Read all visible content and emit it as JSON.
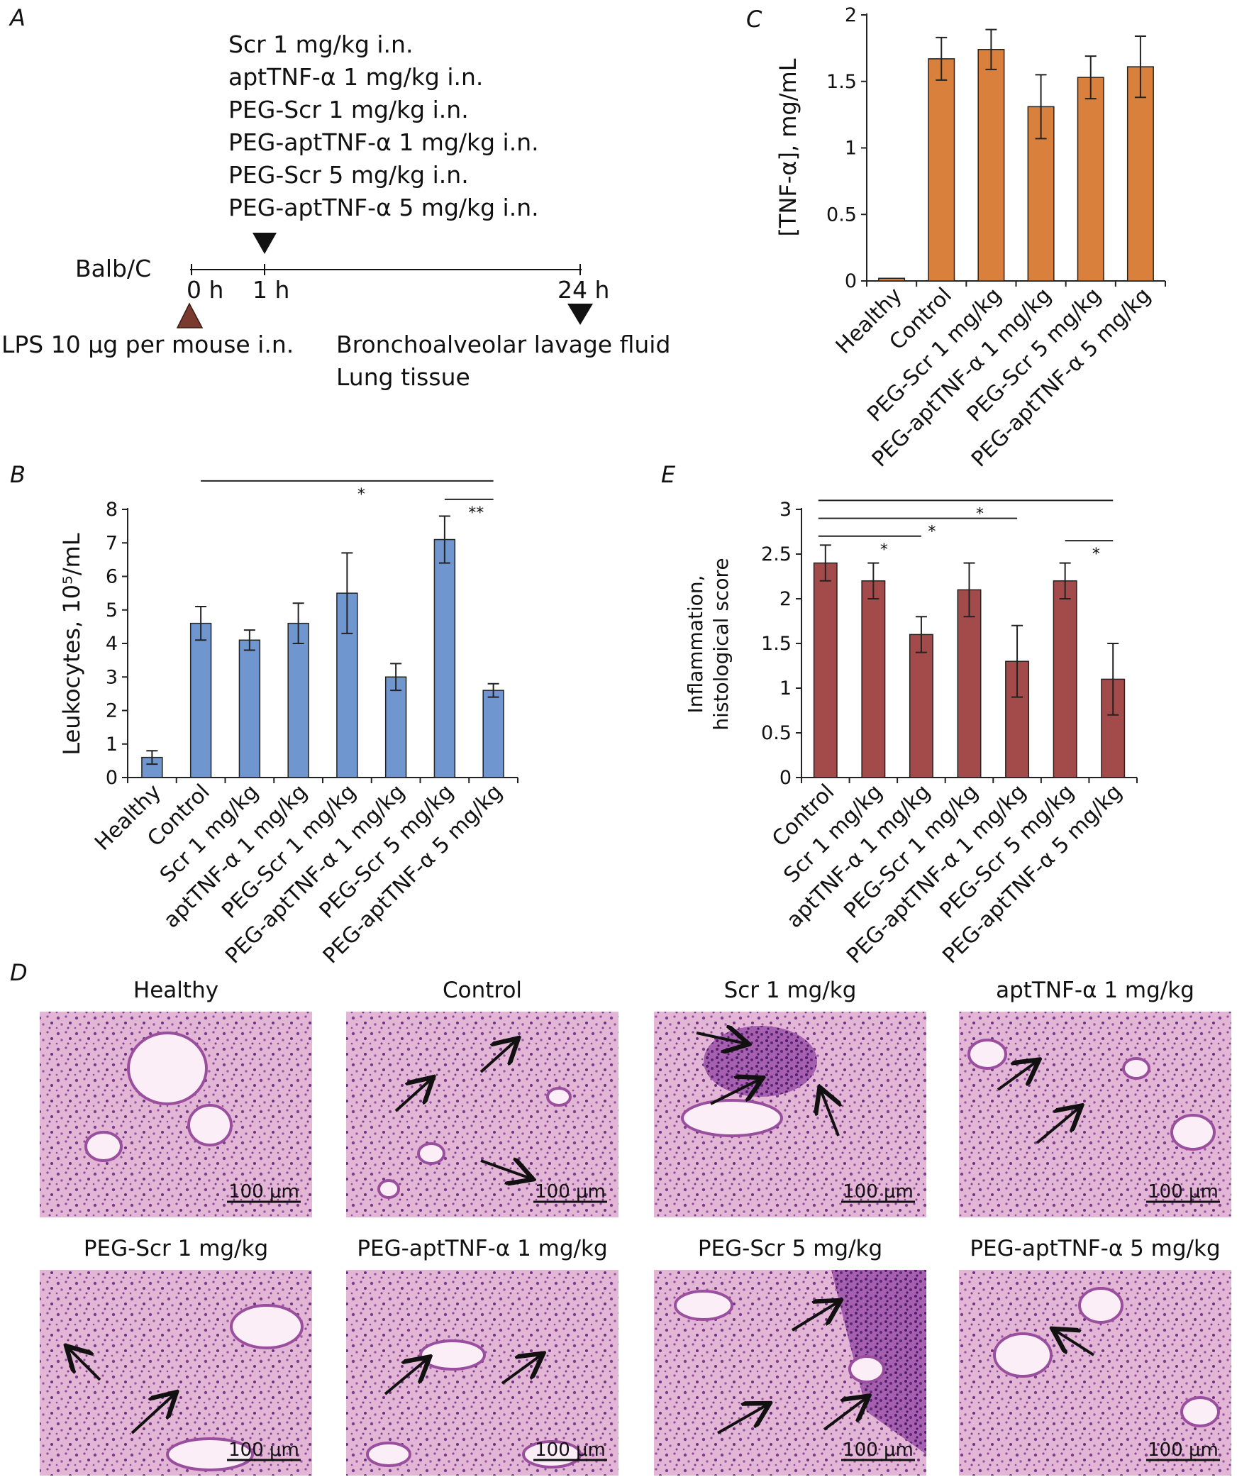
{
  "panelA": {
    "letter": "A",
    "treatments": [
      "Scr 1 mg/kg i.n.",
      "aptTNF-α 1 mg/kg i.n.",
      "PEG-Scr 1 mg/kg i.n.",
      "PEG-aptTNF-α 1 mg/kg i.n.",
      "PEG-Scr 5 mg/kg i.n.",
      "PEG-aptTNF-α 5 mg/kg i.n."
    ],
    "strain": "Balb/C",
    "t0": "0 h",
    "t1": "1 h",
    "t24": "24 h",
    "lps": "LPS 10 μg per mouse i.n.",
    "endpoint1": "Bronchoalveolar lavage fluid",
    "endpoint2": "Lung tissue",
    "colors": {
      "lps_marker": "#7a3b2e",
      "treatment_marker": "#111111"
    }
  },
  "panelD": {
    "letter": "D",
    "scale_bar": "100 μm",
    "images": [
      "Healthy",
      "Control",
      "Scr 1 mg/kg",
      "aptTNF-α 1 mg/kg",
      "PEG-Scr 1 mg/kg",
      "PEG-aptTNF-α 1 mg/kg",
      "PEG-Scr 5 mg/kg",
      "PEG-aptTNF-α 5 mg/kg"
    ]
  },
  "chart_data": [
    {
      "panel": "B",
      "type": "bar",
      "ylabel": "Leukocytes, 10⁵/mL",
      "ylim": [
        0,
        8
      ],
      "yticks": [
        "0",
        "1",
        "2",
        "3",
        "4",
        "5",
        "6",
        "7",
        "8"
      ],
      "categories": [
        "Healthy",
        "Control",
        "Scr 1 mg/kg",
        "aptTNF-α 1 mg/kg",
        "PEG-Scr 1 mg/kg",
        "PEG-aptTNF-α 1 mg/kg",
        "PEG-Scr 5 mg/kg",
        "PEG-aptTNF-α 5 mg/kg"
      ],
      "values": [
        0.6,
        4.6,
        4.1,
        4.6,
        5.5,
        3.0,
        7.1,
        2.6
      ],
      "errors": [
        0.2,
        0.5,
        0.3,
        0.6,
        1.2,
        0.4,
        0.7,
        0.2
      ],
      "color": "#6f96cf",
      "significance": [
        {
          "from": 1,
          "to": 7,
          "label": "*",
          "level": 8.85
        },
        {
          "from": 6,
          "to": 7,
          "label": "**",
          "level": 8.3
        }
      ],
      "grid": false
    },
    {
      "panel": "C",
      "type": "bar",
      "ylabel": "[TNF-α], mg/mL",
      "ylim": [
        0,
        2
      ],
      "yticks": [
        "0",
        "0.5",
        "1",
        "1.5",
        "2"
      ],
      "categories": [
        "Healthy",
        "Control",
        "PEG-Scr 1 mg/kg",
        "PEG-aptTNF-α 1 mg/kg",
        "PEG-Scr 5 mg/kg",
        "PEG-aptTNF-α 5 mg/kg"
      ],
      "values": [
        0.02,
        1.67,
        1.74,
        1.31,
        1.53,
        1.61
      ],
      "errors": [
        0.0,
        0.16,
        0.15,
        0.24,
        0.16,
        0.23
      ],
      "color": "#d9813c",
      "significance": [],
      "grid": false
    },
    {
      "panel": "E",
      "type": "bar",
      "ylabel_line1": "Inflammation,",
      "ylabel_line2": "histological score",
      "ylim": [
        0,
        3
      ],
      "yticks": [
        "0",
        "0.5",
        "1",
        "1.5",
        "2",
        "2.5",
        "3"
      ],
      "categories": [
        "Control",
        "Scr 1 mg/kg",
        "aptTNF-α 1 mg/kg",
        "PEG-Scr 1 mg/kg",
        "PEG-aptTNF-α 1 mg/kg",
        "PEG-Scr 5 mg/kg",
        "PEG-aptTNF-α 5 mg/kg"
      ],
      "values": [
        2.4,
        2.2,
        1.6,
        2.1,
        1.3,
        2.2,
        1.1
      ],
      "errors": [
        0.2,
        0.2,
        0.2,
        0.3,
        0.4,
        0.2,
        0.4
      ],
      "color": "#a34a4a",
      "significance": [
        {
          "from": 0,
          "to": 6,
          "label": "*",
          "level": 3.1
        },
        {
          "from": 0,
          "to": 4,
          "label": "*",
          "level": 2.9
        },
        {
          "from": 0,
          "to": 2,
          "label": "*",
          "level": 2.7
        },
        {
          "from": 5,
          "to": 6,
          "label": "*",
          "level": 2.65
        }
      ],
      "grid": false
    }
  ]
}
